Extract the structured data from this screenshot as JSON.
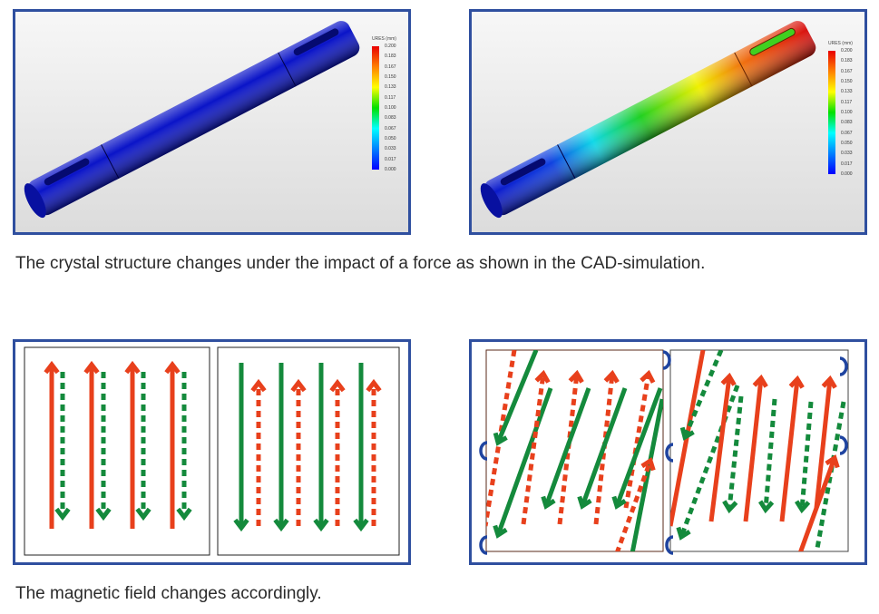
{
  "figure1": {
    "left_legend": {
      "title": "URES (mm)",
      "values": [
        "0.200",
        "0.183",
        "0.167",
        "0.150",
        "0.133",
        "0.117",
        "0.100",
        "0.083",
        "0.067",
        "0.050",
        "0.033",
        "0.017",
        "0.000"
      ]
    },
    "right_legend": {
      "title": "URES (mm)",
      "values": [
        "0.200",
        "0.183",
        "0.167",
        "0.150",
        "0.133",
        "0.117",
        "0.100",
        "0.083",
        "0.067",
        "0.050",
        "0.033",
        "0.017",
        "0.000"
      ]
    },
    "caption": "The crystal structure changes under the impact of a force as shown in the CAD-simulation."
  },
  "figure2": {
    "caption": "The magnetic field changes accordingly."
  },
  "colors": {
    "frame": "#2f4f9f",
    "red": "#e8401c",
    "green": "#148a3c",
    "blue_hook": "#1f44a0",
    "shaft_unloaded": "#0a14c8"
  }
}
